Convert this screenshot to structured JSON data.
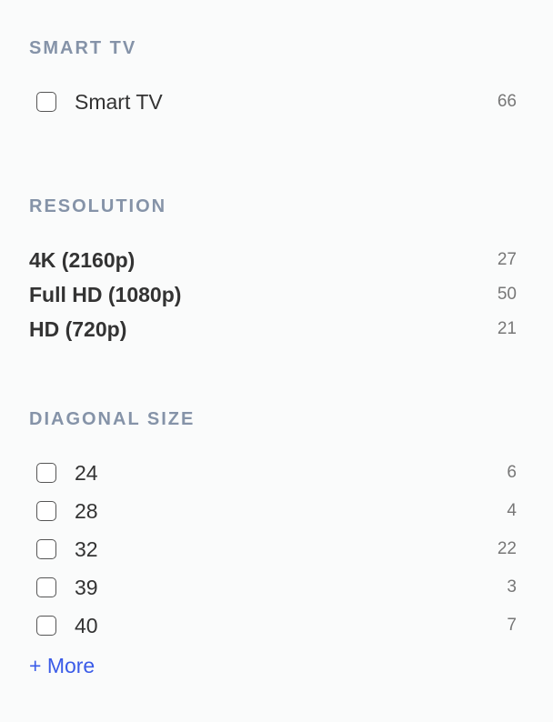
{
  "smart_tv": {
    "heading": "SMART TV",
    "items": [
      {
        "label": "Smart TV",
        "count": "66"
      }
    ]
  },
  "resolution": {
    "heading": "RESOLUTION",
    "items": [
      {
        "label": "4K (2160p)",
        "count": "27"
      },
      {
        "label": "Full HD (1080p)",
        "count": "50"
      },
      {
        "label": "HD (720p)",
        "count": "21"
      }
    ]
  },
  "diagonal": {
    "heading": "DIAGONAL SIZE",
    "items": [
      {
        "label": "24",
        "count": "6"
      },
      {
        "label": "28",
        "count": "4"
      },
      {
        "label": "32",
        "count": "22"
      },
      {
        "label": "39",
        "count": "3"
      },
      {
        "label": "40",
        "count": "7"
      }
    ],
    "more": "+ More"
  }
}
